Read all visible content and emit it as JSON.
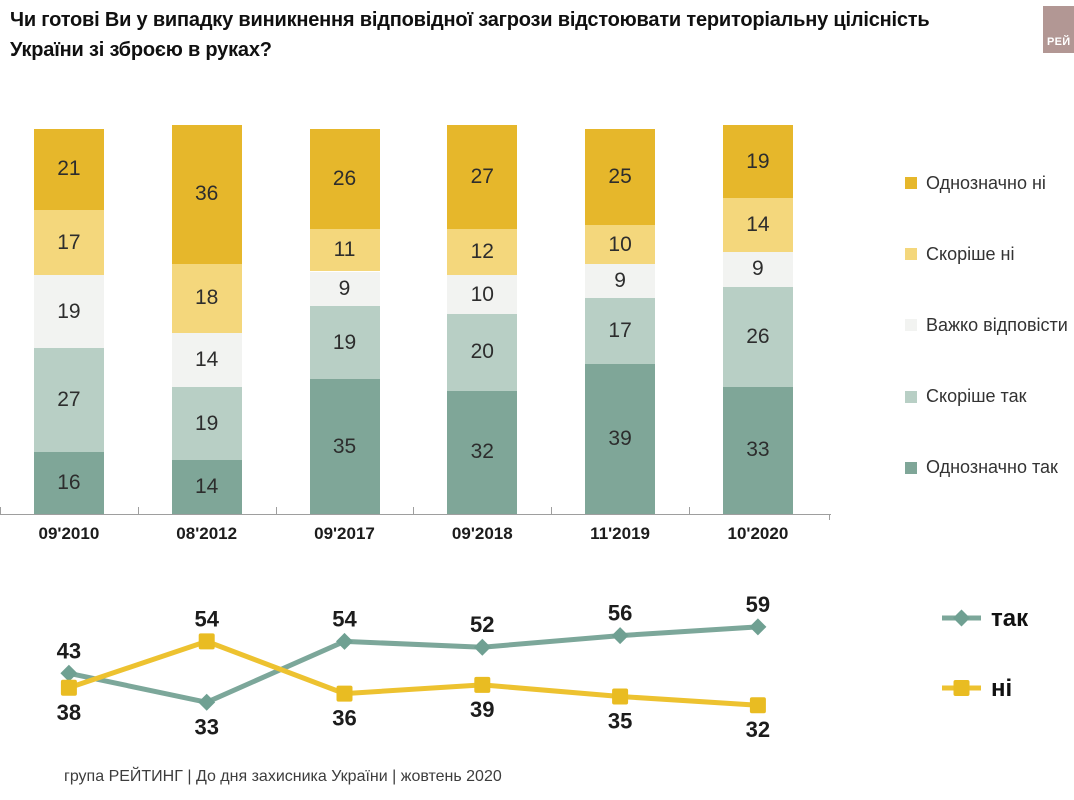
{
  "title": "Чи готові Ви у випадку виникнення відповідної загрози відстоювати територіальну цілісність України зі зброєю в руках?",
  "logo": {
    "text": "РЕЙ",
    "bg_color": "#B29794"
  },
  "footer": "група РЕЙТИНГ | До дня захисника України | жовтень 2020",
  "colors": {
    "definitely_no": "#E6B72B",
    "rather_no": "#F4D77C",
    "hard_to_say": "#F2F3F1",
    "rather_yes": "#B8CFC5",
    "definitely_yes": "#7FA698",
    "line_yes": "#7CA79A",
    "line_no": "#EDC230",
    "axis": "#9E9E9E"
  },
  "chart_data": [
    {
      "type": "bar",
      "stacked": true,
      "unit": "percent",
      "title": "",
      "xlabel": "",
      "ylabel": "",
      "ylim": [
        0,
        101
      ],
      "grid": false,
      "value_labels": "inside",
      "legend_position": "right",
      "legend_order_top_to_bottom": [
        "Однозначно ні",
        "Скоріше ні",
        "Важко відповісти",
        "Скоріше так",
        "Однозначно так"
      ],
      "categories": [
        "09'2010",
        "08'2012",
        "09'2017",
        "09'2018",
        "11'2019",
        "10'2020"
      ],
      "series": [
        {
          "name": "Однозначно так",
          "color": "#7FA698",
          "values": [
            16,
            14,
            35,
            32,
            39,
            33
          ]
        },
        {
          "name": "Скоріше так",
          "color": "#B8CFC5",
          "values": [
            27,
            19,
            19,
            20,
            17,
            26
          ]
        },
        {
          "name": "Важко відповісти",
          "color": "#F2F3F1",
          "values": [
            19,
            14,
            9,
            10,
            9,
            9
          ]
        },
        {
          "name": "Скоріше ні",
          "color": "#F4D77C",
          "values": [
            17,
            18,
            11,
            12,
            10,
            14
          ]
        },
        {
          "name": "Однозначно ні",
          "color": "#E6B72B",
          "values": [
            21,
            36,
            26,
            27,
            25,
            19
          ]
        }
      ]
    },
    {
      "type": "line",
      "title": "",
      "grid": false,
      "axes_visible": false,
      "value_labels": "outside",
      "legend_position": "right",
      "x": [
        "09'2010",
        "08'2012",
        "09'2017",
        "09'2018",
        "11'2019",
        "10'2020"
      ],
      "series": [
        {
          "name": "так",
          "color": "#7CA79A",
          "marker": "diamond",
          "marker_color": "#6FA092",
          "values": [
            43,
            33,
            54,
            52,
            56,
            59
          ]
        },
        {
          "name": "ні",
          "color": "#EDC230",
          "marker": "square",
          "marker_color": "#E9BC22",
          "values": [
            38,
            54,
            36,
            39,
            35,
            32
          ]
        }
      ]
    }
  ]
}
